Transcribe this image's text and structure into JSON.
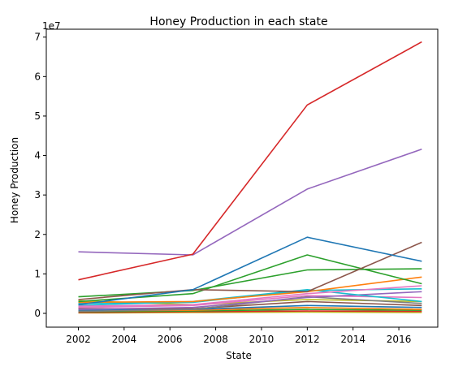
{
  "chart_data": {
    "type": "line",
    "title": "Honey Production in each state",
    "xlabel": "State",
    "ylabel": "Honey Production",
    "y_offset_label": "1e7",
    "xlim": [
      2000.6,
      2017.7
    ],
    "ylim": [
      -0.35,
      7.2
    ],
    "y_multiplier": 10000000,
    "x_ticks": [
      2002,
      2004,
      2006,
      2008,
      2010,
      2012,
      2014,
      2016
    ],
    "y_ticks": [
      0,
      1,
      2,
      3,
      4,
      5,
      6,
      7
    ],
    "x": [
      2002,
      2007,
      2012,
      2017
    ],
    "grid": false,
    "legend": "none",
    "series": [
      {
        "values": [
          0.85,
          1.5,
          5.28,
          6.88
        ],
        "color": "#d62728"
      },
      {
        "values": [
          1.56,
          1.48,
          3.15,
          4.16
        ],
        "color": "#9467bd"
      },
      {
        "values": [
          0.22,
          0.6,
          1.93,
          1.32
        ],
        "color": "#1f77b4"
      },
      {
        "values": [
          0.3,
          0.5,
          1.48,
          0.75
        ],
        "color": "#2ca02c"
      },
      {
        "values": [
          0.42,
          0.58,
          1.1,
          1.13
        ],
        "color": "#2ca02c"
      },
      {
        "values": [
          0.35,
          0.6,
          0.55,
          1.8
        ],
        "color": "#8c564b"
      },
      {
        "values": [
          0.28,
          0.3,
          0.55,
          0.92
        ],
        "color": "#ff7f0e"
      },
      {
        "values": [
          0.2,
          0.3,
          0.6,
          0.3
        ],
        "color": "#17becf"
      },
      {
        "values": [
          0.25,
          0.28,
          0.58,
          0.62
        ],
        "color": "#17becf"
      },
      {
        "values": [
          0.18,
          0.22,
          0.5,
          0.7
        ],
        "color": "#e377c2"
      },
      {
        "values": [
          0.15,
          0.2,
          0.45,
          0.4
        ],
        "color": "#e377c2"
      },
      {
        "values": [
          0.32,
          0.22,
          0.35,
          0.3
        ],
        "color": "#bcbd22"
      },
      {
        "values": [
          0.1,
          0.15,
          0.4,
          0.55
        ],
        "color": "#9467bd"
      },
      {
        "values": [
          0.05,
          0.1,
          0.42,
          0.25
        ],
        "color": "#7f7f7f"
      },
      {
        "values": [
          0.12,
          0.12,
          0.3,
          0.2
        ],
        "color": "#8c564b"
      },
      {
        "values": [
          0.08,
          0.1,
          0.2,
          0.15
        ],
        "color": "#1f77b4"
      },
      {
        "values": [
          0.06,
          0.08,
          0.15,
          0.1
        ],
        "color": "#ff7f0e"
      },
      {
        "values": [
          0.04,
          0.06,
          0.1,
          0.08
        ],
        "color": "#2ca02c"
      },
      {
        "values": [
          0.02,
          0.04,
          0.06,
          0.05
        ],
        "color": "#d62728"
      },
      {
        "values": [
          0.01,
          0.02,
          0.03,
          0.02
        ],
        "color": "#bcbd22"
      }
    ]
  }
}
